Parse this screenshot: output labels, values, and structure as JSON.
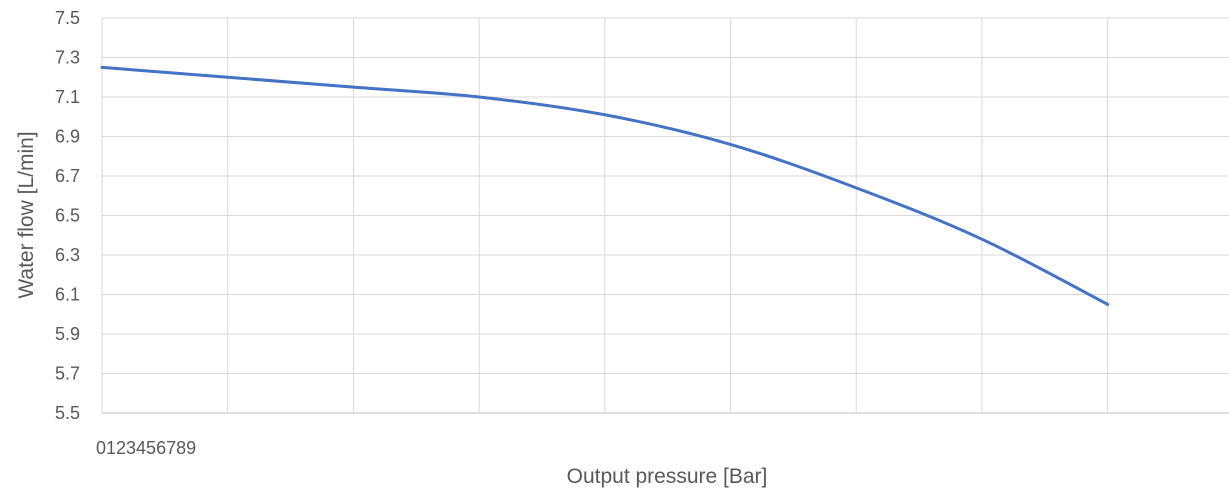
{
  "chart_data": {
    "type": "line",
    "title": "",
    "xlabel": "Output pressure [Bar]",
    "ylabel": "Water flow [L/min]",
    "x_tick_text": "0123456789",
    "x": [
      0,
      1,
      2,
      3,
      4,
      5,
      6,
      7,
      8
    ],
    "series": [
      {
        "values": [
          7.25,
          7.2,
          7.15,
          7.1,
          7.01,
          6.86,
          6.64,
          6.38,
          6.05
        ],
        "color": "#4472C4"
      }
    ],
    "xlim": [
      0,
      9
    ],
    "ylim": [
      5.5,
      7.5
    ],
    "yticks": [
      "5.5",
      "5.7",
      "5.9",
      "6.1",
      "6.3",
      "6.5",
      "6.7",
      "6.9",
      "7.1",
      "7.3",
      "7.5"
    ],
    "grid": true,
    "legend": "none"
  }
}
